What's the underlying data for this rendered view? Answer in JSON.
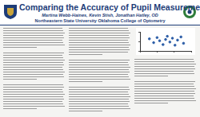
{
  "header": {
    "title": "Comparing the Accuracy of Pupil Measurement Methods",
    "authors": "Martina Webb-Haines, Kevin Stish, Jonathan Hatley, OD",
    "institution": "Northeastern State University Oklahoma College of Optometry"
  },
  "chart_data": {
    "type": "scatter",
    "x": [
      3.1,
      3.6,
      4.0,
      4.3,
      4.7,
      5.0,
      5.2,
      5.5,
      5.8,
      6.1,
      6.4,
      6.8,
      7.1
    ],
    "values": [
      0.4,
      -0.2,
      0.6,
      0.1,
      -0.5,
      0.3,
      0.8,
      -0.1,
      0.5,
      -0.6,
      0.2,
      0.7,
      -0.3
    ],
    "color": "#2e5fa8",
    "xlim": [
      2,
      8
    ],
    "xticks": [
      2,
      4,
      6,
      8
    ],
    "ylim": [
      -1.5,
      1.5
    ],
    "yticks": [
      -1.5,
      0,
      1.5
    ],
    "grid": false,
    "tick_labels": false
  }
}
